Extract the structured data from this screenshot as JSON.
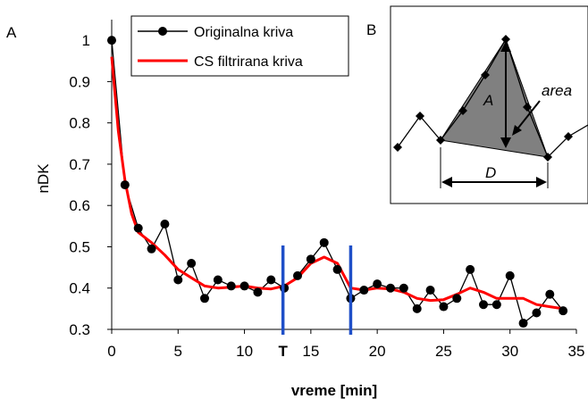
{
  "chart_data": [
    {
      "type": "line",
      "panel_label": "A",
      "xlabel": "vreme [min]",
      "ylabel": "nDK",
      "xlim": [
        0,
        35
      ],
      "ylim": [
        0.3,
        1.05
      ],
      "xticks": [
        "0",
        "5",
        "10",
        "15",
        "20",
        "25",
        "30",
        "35"
      ],
      "yticks": [
        "0.3",
        "0.4",
        "0.5",
        "0.6",
        "0.7",
        "0.8",
        "0.9",
        "1"
      ],
      "grid": false,
      "legend": "top-center",
      "series": [
        {
          "name": "Originalna kriva",
          "color": "#000000",
          "marker": "circle",
          "x": [
            0,
            1,
            2,
            3,
            4,
            5,
            6,
            7,
            8,
            9,
            10,
            11,
            12,
            13,
            14,
            15,
            16,
            17,
            18,
            19,
            20,
            21,
            22,
            23,
            24,
            25,
            26,
            27,
            28,
            29,
            30,
            31,
            32,
            33,
            34
          ],
          "y": [
            1.0,
            0.65,
            0.545,
            0.495,
            0.555,
            0.42,
            0.46,
            0.375,
            0.42,
            0.405,
            0.405,
            0.39,
            0.42,
            0.4,
            0.43,
            0.47,
            0.51,
            0.445,
            0.375,
            0.395,
            0.41,
            0.4,
            0.4,
            0.35,
            0.395,
            0.355,
            0.375,
            0.445,
            0.36,
            0.36,
            0.43,
            0.315,
            0.34,
            0.385,
            0.345
          ]
        },
        {
          "name": "CS filtrirana kriva",
          "color": "#ff0000",
          "marker": "none",
          "x": [
            0,
            0.5,
            1,
            1.5,
            2,
            3,
            4,
            5,
            6,
            7,
            8,
            9,
            10,
            11,
            12,
            13,
            14,
            15,
            16,
            17,
            18,
            19,
            20,
            21,
            22,
            23,
            24,
            25,
            26,
            27,
            28,
            29,
            30,
            31,
            32,
            33,
            34
          ],
          "y": [
            0.96,
            0.78,
            0.66,
            0.58,
            0.535,
            0.51,
            0.48,
            0.445,
            0.425,
            0.405,
            0.4,
            0.402,
            0.405,
            0.4,
            0.398,
            0.405,
            0.425,
            0.46,
            0.475,
            0.46,
            0.4,
            0.395,
            0.4,
            0.398,
            0.39,
            0.375,
            0.37,
            0.372,
            0.385,
            0.4,
            0.39,
            0.375,
            0.375,
            0.375,
            0.36,
            0.355,
            0.35
          ]
        }
      ],
      "markers": [
        {
          "x": 12.9,
          "label": "T",
          "color": "#1f4fc8"
        },
        {
          "x": 18.0,
          "label": "",
          "color": "#1f4fc8"
        }
      ]
    },
    {
      "type": "diagram",
      "panel_label": "B",
      "labels": [
        "A",
        "area",
        "D"
      ],
      "colors": {
        "fill": "#808080",
        "line": "#000000"
      }
    }
  ]
}
